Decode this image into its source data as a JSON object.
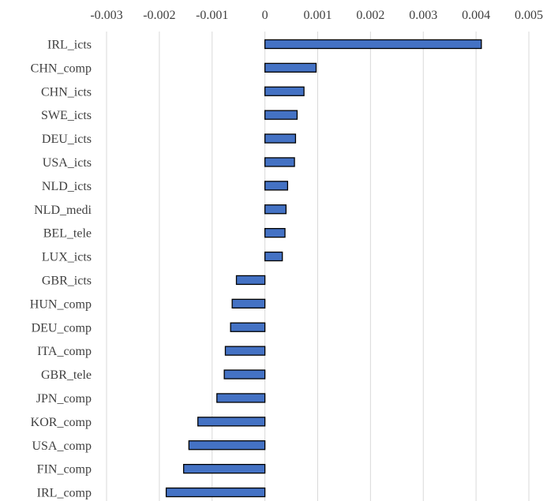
{
  "chart_data": {
    "type": "bar",
    "orientation": "horizontal",
    "title": "",
    "xlabel": "",
    "ylabel": "",
    "xlim": [
      -0.003,
      0.005
    ],
    "ticks": [
      -0.003,
      -0.002,
      -0.001,
      0,
      0.001,
      0.002,
      0.003,
      0.004,
      0.005
    ],
    "tick_labels": [
      "-0.003",
      "-0.002",
      "-0.001",
      "0",
      "0.001",
      "0.002",
      "0.003",
      "0.004",
      "0.005"
    ],
    "axis_position": "top",
    "grid": true,
    "bar_color": "#4472c4",
    "categories": [
      "IRL_icts",
      "CHN_comp",
      "CHN_icts",
      "SWE_icts",
      "DEU_icts",
      "USA_icts",
      "NLD_icts",
      "NLD_medi",
      "BEL_tele",
      "LUX_icts",
      "GBR_icts",
      "HUN_comp",
      "DEU_comp",
      "ITA_comp",
      "GBR_tele",
      "JPN_comp",
      "KOR_comp",
      "USA_comp",
      "FIN_comp",
      "IRL_comp"
    ],
    "values": [
      0.0041,
      0.00097,
      0.00074,
      0.00061,
      0.00058,
      0.00056,
      0.00043,
      0.0004,
      0.00038,
      0.00033,
      -0.00054,
      -0.00062,
      -0.00065,
      -0.00075,
      -0.00077,
      -0.00091,
      -0.00127,
      -0.00144,
      -0.00154,
      -0.00187
    ]
  }
}
